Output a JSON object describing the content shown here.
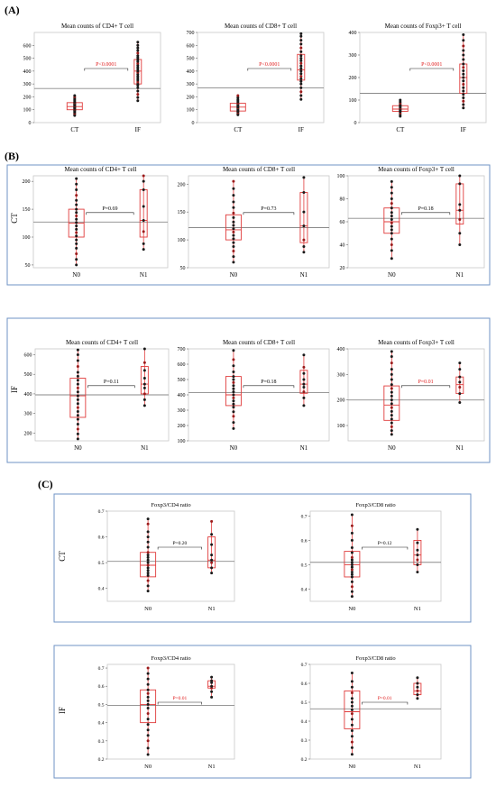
{
  "sections": [
    {
      "label": "(A)"
    },
    {
      "label": "(B)"
    },
    {
      "label": "(C)"
    }
  ],
  "row_labels": {
    "ct": "CT",
    "if": "IF"
  },
  "colors": {
    "box": "#e03c3c",
    "points": "#1a1a1a",
    "point_highlight": "#9b1b1b",
    "pvalue_red": "#e01b1b",
    "pvalue_black": "#000000",
    "frame_blue": "#6f93c6",
    "mean_line": "#8a8a8a"
  },
  "chart_data": [
    {
      "id": "A1",
      "type": "box",
      "title": "Mean counts of CD4+ T cell",
      "categories": [
        "CT",
        "IF"
      ],
      "ylim": [
        0,
        700
      ],
      "yticks": [
        0,
        100,
        200,
        300,
        400,
        500,
        600
      ],
      "reference_line": 265,
      "groups": [
        {
          "name": "CT",
          "q1": 100,
          "median": 125,
          "q3": 155,
          "whisker_low": 55,
          "whisker_high": 210,
          "points": [
            55,
            65,
            72,
            80,
            88,
            95,
            100,
            105,
            110,
            115,
            120,
            125,
            130,
            135,
            140,
            145,
            150,
            155,
            160,
            170,
            180,
            190,
            200,
            210
          ]
        },
        {
          "name": "IF",
          "q1": 300,
          "median": 400,
          "q3": 490,
          "whisker_low": 170,
          "whisker_high": 625,
          "points": [
            170,
            195,
            220,
            245,
            270,
            290,
            300,
            315,
            330,
            345,
            360,
            375,
            390,
            400,
            415,
            430,
            445,
            460,
            475,
            490,
            505,
            520,
            540,
            560,
            580,
            600,
            625
          ]
        }
      ],
      "pvalue": "P<0.0001",
      "pvalue_color": "red"
    },
    {
      "id": "A2",
      "type": "box",
      "title": "Mean counts of CD8+ T cell",
      "categories": [
        "CT",
        "IF"
      ],
      "ylim": [
        0,
        700
      ],
      "yticks": [
        0,
        100,
        200,
        300,
        400,
        500,
        600,
        700
      ],
      "reference_line": 270,
      "groups": [
        {
          "name": "CT",
          "q1": 90,
          "median": 120,
          "q3": 150,
          "whisker_low": 60,
          "whisker_high": 210,
          "points": [
            60,
            70,
            78,
            85,
            92,
            100,
            108,
            115,
            120,
            128,
            135,
            142,
            150,
            160,
            170,
            180,
            195,
            210
          ]
        },
        {
          "name": "IF",
          "q1": 330,
          "median": 410,
          "q3": 530,
          "whisker_low": 180,
          "whisker_high": 690,
          "points": [
            180,
            210,
            240,
            270,
            300,
            320,
            340,
            360,
            380,
            400,
            420,
            440,
            460,
            480,
            500,
            520,
            550,
            580,
            610,
            640,
            670,
            690
          ]
        }
      ],
      "pvalue": "P<0.0001",
      "pvalue_color": "red"
    },
    {
      "id": "A3",
      "type": "box",
      "title": "Mean counts of Foxp3+ T cell",
      "categories": [
        "CT",
        "IF"
      ],
      "ylim": [
        0,
        400
      ],
      "yticks": [
        0,
        100,
        200,
        300,
        400
      ],
      "reference_line": 130,
      "groups": [
        {
          "name": "CT",
          "q1": 50,
          "median": 60,
          "q3": 75,
          "whisker_low": 28,
          "whisker_high": 100,
          "points": [
            28,
            35,
            42,
            48,
            52,
            56,
            60,
            64,
            68,
            72,
            76,
            80,
            86,
            92,
            100
          ]
        },
        {
          "name": "IF",
          "q1": 130,
          "median": 200,
          "q3": 260,
          "whisker_low": 65,
          "whisker_high": 390,
          "points": [
            65,
            80,
            95,
            110,
            125,
            140,
            155,
            170,
            185,
            200,
            215,
            230,
            245,
            260,
            280,
            300,
            320,
            340,
            365,
            390
          ]
        }
      ],
      "pvalue": "P<0.0001",
      "pvalue_color": "red"
    },
    {
      "id": "B-CT-1",
      "type": "box",
      "title": "Mean counts of CD4+ T cell",
      "categories": [
        "N0",
        "N1"
      ],
      "ylim": [
        45,
        210
      ],
      "yticks": [
        50,
        100,
        150,
        200
      ],
      "reference_line": 127,
      "groups": [
        {
          "name": "N0",
          "q1": 100,
          "median": 125,
          "q3": 150,
          "whisker_low": 50,
          "whisker_high": 205,
          "points": [
            50,
            60,
            70,
            80,
            88,
            95,
            102,
            108,
            114,
            120,
            126,
            132,
            138,
            144,
            150,
            158,
            166,
            175,
            185,
            195,
            205
          ]
        },
        {
          "name": "N1",
          "q1": 100,
          "median": 130,
          "q3": 185,
          "whisker_low": 78,
          "whisker_high": 210,
          "points": [
            78,
            88,
            110,
            130,
            155,
            185,
            200,
            210
          ]
        }
      ],
      "pvalue": "P=0.69",
      "pvalue_color": "black"
    },
    {
      "id": "B-CT-2",
      "type": "box",
      "title": "Mean counts of CD8+ T cell",
      "categories": [
        "N0",
        "N1"
      ],
      "ylim": [
        50,
        215
      ],
      "yticks": [
        50,
        100,
        150,
        200
      ],
      "reference_line": 122,
      "groups": [
        {
          "name": "N0",
          "q1": 100,
          "median": 118,
          "q3": 145,
          "whisker_low": 60,
          "whisker_high": 205,
          "points": [
            60,
            70,
            80,
            88,
            95,
            102,
            108,
            114,
            120,
            126,
            132,
            140,
            148,
            158,
            168,
            180,
            192,
            205
          ]
        },
        {
          "name": "N1",
          "q1": 95,
          "median": 125,
          "q3": 185,
          "whisker_low": 78,
          "whisker_high": 212,
          "points": [
            78,
            88,
            100,
            125,
            150,
            185,
            212
          ]
        }
      ],
      "pvalue": "P=0.73",
      "pvalue_color": "black"
    },
    {
      "id": "B-CT-3",
      "type": "box",
      "title": "Mean counts of Foxp3+ T cell",
      "categories": [
        "N0",
        "N1"
      ],
      "ylim": [
        20,
        100
      ],
      "yticks": [
        20,
        40,
        60,
        80,
        100
      ],
      "reference_line": 63,
      "groups": [
        {
          "name": "N0",
          "q1": 50,
          "median": 60,
          "q3": 72,
          "whisker_low": 28,
          "whisker_high": 95,
          "points": [
            28,
            35,
            40,
            45,
            50,
            53,
            56,
            59,
            62,
            65,
            68,
            72,
            76,
            80,
            85,
            90,
            95
          ]
        },
        {
          "name": "N1",
          "q1": 58,
          "median": 70,
          "q3": 93,
          "whisker_low": 40,
          "whisker_high": 100,
          "points": [
            40,
            50,
            62,
            70,
            75,
            93,
            100
          ]
        }
      ],
      "pvalue": "P=0.18",
      "pvalue_color": "black"
    },
    {
      "id": "B-IF-1",
      "type": "box",
      "title": "Mean counts of CD4+ T cell",
      "categories": [
        "N0",
        "N1"
      ],
      "ylim": [
        160,
        630
      ],
      "yticks": [
        200,
        300,
        400,
        500,
        600
      ],
      "reference_line": 395,
      "groups": [
        {
          "name": "N0",
          "q1": 280,
          "median": 390,
          "q3": 480,
          "whisker_low": 170,
          "whisker_high": 625,
          "points": [
            170,
            195,
            220,
            245,
            270,
            290,
            310,
            330,
            350,
            370,
            390,
            410,
            430,
            450,
            470,
            490,
            510,
            540,
            570,
            600,
            625
          ]
        },
        {
          "name": "N1",
          "q1": 400,
          "median": 450,
          "q3": 540,
          "whisker_low": 340,
          "whisker_high": 630,
          "points": [
            340,
            370,
            400,
            430,
            450,
            480,
            520,
            560,
            630
          ]
        }
      ],
      "pvalue": "P=0.11",
      "pvalue_color": "black"
    },
    {
      "id": "B-IF-2",
      "type": "box",
      "title": "Mean counts of CD8+ T cell",
      "categories": [
        "N0",
        "N1"
      ],
      "ylim": [
        100,
        700
      ],
      "yticks": [
        100,
        200,
        300,
        400,
        500,
        600,
        700
      ],
      "reference_line": 415,
      "groups": [
        {
          "name": "N0",
          "q1": 330,
          "median": 400,
          "q3": 520,
          "whisker_low": 180,
          "whisker_high": 690,
          "points": [
            180,
            220,
            260,
            290,
            320,
            340,
            360,
            380,
            400,
            420,
            440,
            460,
            480,
            500,
            520,
            550,
            590,
            630,
            690
          ]
        },
        {
          "name": "N1",
          "q1": 410,
          "median": 470,
          "q3": 560,
          "whisker_low": 330,
          "whisker_high": 660,
          "points": [
            330,
            380,
            420,
            450,
            470,
            500,
            540,
            580,
            660
          ]
        }
      ],
      "pvalue": "P=0.18",
      "pvalue_color": "black"
    },
    {
      "id": "B-IF-3",
      "type": "box",
      "title": "Mean counts of Foxp3+ T cell",
      "categories": [
        "N0",
        "N1"
      ],
      "ylim": [
        40,
        400
      ],
      "yticks": [
        100,
        200,
        300,
        400
      ],
      "reference_line": 200,
      "groups": [
        {
          "name": "N0",
          "q1": 120,
          "median": 180,
          "q3": 255,
          "whisker_low": 65,
          "whisker_high": 390,
          "points": [
            65,
            80,
            95,
            110,
            125,
            140,
            155,
            170,
            185,
            200,
            215,
            230,
            245,
            260,
            280,
            300,
            320,
            345,
            370,
            390
          ]
        },
        {
          "name": "N1",
          "q1": 225,
          "median": 260,
          "q3": 290,
          "whisker_low": 190,
          "whisker_high": 345,
          "points": [
            190,
            225,
            250,
            270,
            290,
            320,
            345
          ]
        }
      ],
      "pvalue": "P=0.01",
      "pvalue_color": "red"
    },
    {
      "id": "C-CT-1",
      "type": "box",
      "title": "Foxp3/CD4 ratio",
      "categories": [
        "N0",
        "N1"
      ],
      "ylim": [
        0.35,
        0.7
      ],
      "yticks": [
        0.4,
        0.5,
        0.6,
        0.7
      ],
      "reference_line": 0.505,
      "groups": [
        {
          "name": "N0",
          "q1": 0.445,
          "median": 0.49,
          "q3": 0.54,
          "whisker_low": 0.39,
          "whisker_high": 0.67,
          "points": [
            0.39,
            0.41,
            0.43,
            0.45,
            0.46,
            0.47,
            0.48,
            0.49,
            0.5,
            0.51,
            0.52,
            0.53,
            0.54,
            0.56,
            0.58,
            0.6,
            0.62,
            0.65,
            0.67
          ]
        },
        {
          "name": "N1",
          "q1": 0.48,
          "median": 0.51,
          "q3": 0.6,
          "whisker_low": 0.46,
          "whisker_high": 0.66,
          "points": [
            0.46,
            0.48,
            0.5,
            0.51,
            0.53,
            0.57,
            0.61,
            0.66
          ]
        }
      ],
      "pvalue": "P=0.20",
      "pvalue_color": "black"
    },
    {
      "id": "C-CT-2",
      "type": "box",
      "title": "Foxp3/CD8 ratio",
      "categories": [
        "N0",
        "N1"
      ],
      "ylim": [
        0.35,
        0.72
      ],
      "yticks": [
        0.4,
        0.5,
        0.6,
        0.7
      ],
      "reference_line": 0.51,
      "groups": [
        {
          "name": "N0",
          "q1": 0.45,
          "median": 0.5,
          "q3": 0.555,
          "whisker_low": 0.37,
          "whisker_high": 0.705,
          "points": [
            0.37,
            0.39,
            0.41,
            0.43,
            0.45,
            0.46,
            0.47,
            0.48,
            0.49,
            0.5,
            0.51,
            0.52,
            0.53,
            0.55,
            0.57,
            0.6,
            0.63,
            0.66,
            0.705
          ]
        },
        {
          "name": "N1",
          "q1": 0.5,
          "median": 0.54,
          "q3": 0.6,
          "whisker_low": 0.47,
          "whisker_high": 0.645,
          "points": [
            0.47,
            0.5,
            0.52,
            0.54,
            0.56,
            0.59,
            0.645
          ]
        }
      ],
      "pvalue": "P=0.12",
      "pvalue_color": "black"
    },
    {
      "id": "C-IF-1",
      "type": "box",
      "title": "Foxp3/CD4 ratio",
      "categories": [
        "N0",
        "N1"
      ],
      "ylim": [
        0.2,
        0.72
      ],
      "yticks": [
        0.2,
        0.3,
        0.4,
        0.5,
        0.6,
        0.7
      ],
      "reference_line": 0.495,
      "groups": [
        {
          "name": "N0",
          "q1": 0.4,
          "median": 0.5,
          "q3": 0.58,
          "whisker_low": 0.225,
          "whisker_high": 0.7,
          "points": [
            0.225,
            0.26,
            0.3,
            0.33,
            0.36,
            0.39,
            0.42,
            0.45,
            0.48,
            0.5,
            0.52,
            0.54,
            0.56,
            0.58,
            0.61,
            0.64,
            0.67,
            0.7
          ]
        },
        {
          "name": "N1",
          "q1": 0.59,
          "median": 0.6,
          "q3": 0.63,
          "whisker_low": 0.54,
          "whisker_high": 0.65,
          "points": [
            0.54,
            0.57,
            0.59,
            0.6,
            0.62,
            0.63,
            0.65
          ]
        }
      ],
      "pvalue": "P=0.01",
      "pvalue_color": "red"
    },
    {
      "id": "C-IF-2",
      "type": "box",
      "title": "Foxp3/CD8 ratio",
      "categories": [
        "N0",
        "N1"
      ],
      "ylim": [
        0.2,
        0.7
      ],
      "yticks": [
        0.2,
        0.3,
        0.4,
        0.5,
        0.6,
        0.7
      ],
      "reference_line": 0.465,
      "groups": [
        {
          "name": "N0",
          "q1": 0.36,
          "median": 0.45,
          "q3": 0.56,
          "whisker_low": 0.225,
          "whisker_high": 0.655,
          "points": [
            0.225,
            0.26,
            0.29,
            0.32,
            0.35,
            0.38,
            0.41,
            0.44,
            0.46,
            0.48,
            0.5,
            0.52,
            0.55,
            0.58,
            0.61,
            0.655
          ]
        },
        {
          "name": "N1",
          "q1": 0.54,
          "median": 0.56,
          "q3": 0.6,
          "whisker_low": 0.52,
          "whisker_high": 0.63,
          "points": [
            0.52,
            0.54,
            0.56,
            0.58,
            0.6,
            0.63
          ]
        }
      ],
      "pvalue": "P=0.01",
      "pvalue_color": "red"
    }
  ]
}
